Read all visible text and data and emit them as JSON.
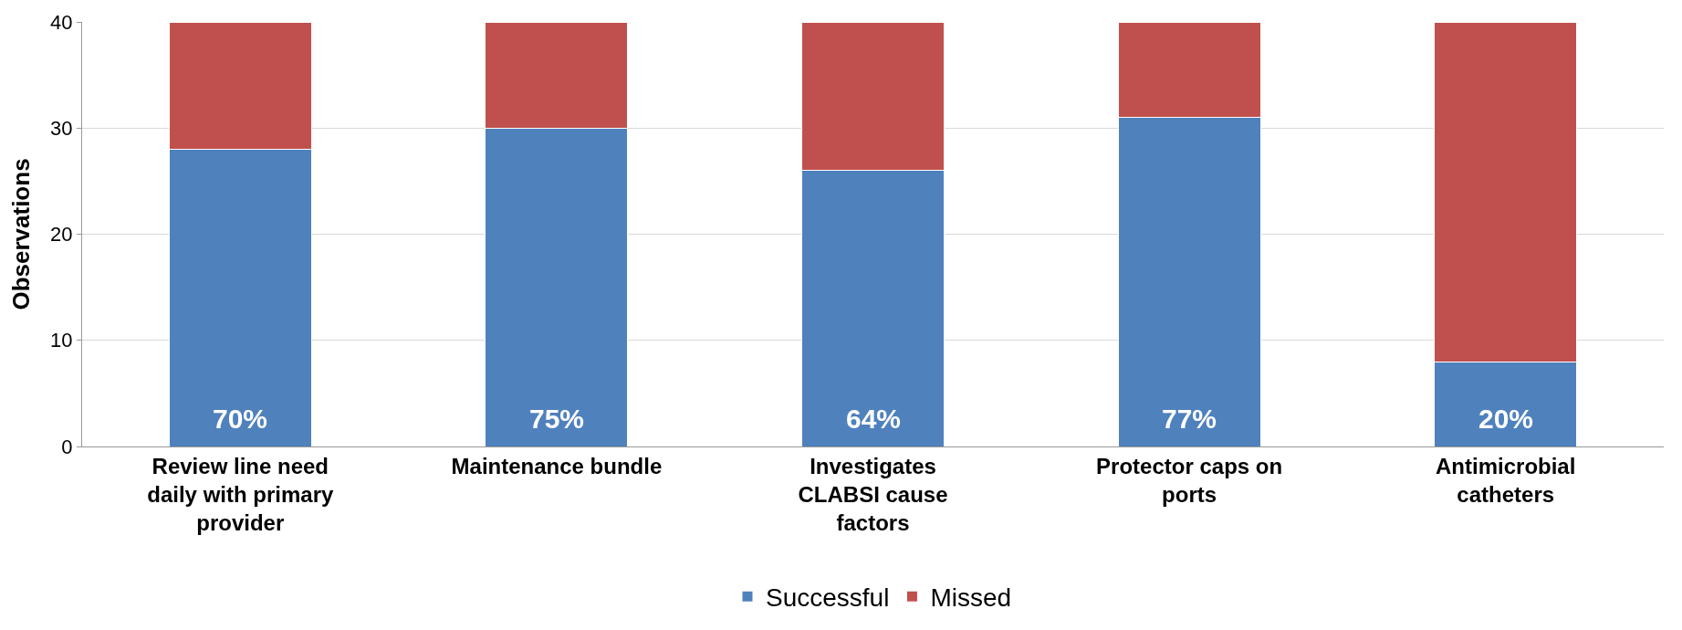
{
  "chart_data": {
    "type": "bar",
    "stacked": true,
    "ylabel": "Observations",
    "categories": [
      "Review line need daily with primary provider",
      "Maintenance bundle",
      "Investigates CLABSI cause factors",
      "Protector caps on ports",
      "Antimicrobial catheters"
    ],
    "series": [
      {
        "name": "Successful",
        "color": "#4f81bd",
        "values": [
          28,
          30,
          26,
          31,
          8
        ]
      },
      {
        "name": "Missed",
        "color": "#c0504d",
        "values": [
          12,
          10,
          14,
          9,
          32
        ]
      }
    ],
    "annotations": [
      {
        "text": "70%",
        "x": "Review line need daily with primary provider",
        "y": 0
      },
      {
        "text": "75%",
        "x": "Maintenance bundle",
        "y": 0
      },
      {
        "text": "64%",
        "x": "Investigates CLABSI cause factors",
        "y": 0
      },
      {
        "text": "77%",
        "x": "Protector caps on ports",
        "y": 0
      },
      {
        "text": "20%",
        "x": "Antimicrobial catheters",
        "y": 0
      }
    ],
    "ylim": [
      0,
      40
    ],
    "yticks": [
      0,
      10,
      20,
      30,
      40
    ],
    "grid": "y",
    "legend": "bottom"
  }
}
